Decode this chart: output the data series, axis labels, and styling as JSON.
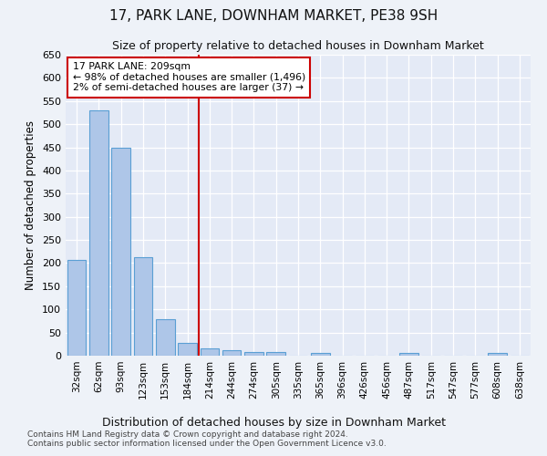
{
  "title": "17, PARK LANE, DOWNHAM MARKET, PE38 9SH",
  "subtitle": "Size of property relative to detached houses in Downham Market",
  "xlabel": "Distribution of detached houses by size in Downham Market",
  "ylabel": "Number of detached properties",
  "bar_labels": [
    "32sqm",
    "62sqm",
    "93sqm",
    "123sqm",
    "153sqm",
    "184sqm",
    "214sqm",
    "244sqm",
    "274sqm",
    "305sqm",
    "335sqm",
    "365sqm",
    "396sqm",
    "426sqm",
    "456sqm",
    "487sqm",
    "517sqm",
    "547sqm",
    "577sqm",
    "608sqm",
    "638sqm"
  ],
  "bar_values": [
    207,
    530,
    450,
    212,
    78,
    27,
    15,
    12,
    7,
    8,
    0,
    6,
    0,
    0,
    0,
    6,
    0,
    0,
    0,
    6,
    0
  ],
  "bar_color": "#aec6e8",
  "bar_edge_color": "#5a9fd4",
  "vline_x_index": 6,
  "vline_color": "#cc0000",
  "annotation_line1": "17 PARK LANE: 209sqm",
  "annotation_line2": "← 98% of detached houses are smaller (1,496)",
  "annotation_line3": "2% of semi-detached houses are larger (37) →",
  "ylim": [
    0,
    650
  ],
  "yticks": [
    0,
    50,
    100,
    150,
    200,
    250,
    300,
    350,
    400,
    450,
    500,
    550,
    600,
    650
  ],
  "footnote1": "Contains HM Land Registry data © Crown copyright and database right 2024.",
  "footnote2": "Contains public sector information licensed under the Open Government Licence v3.0.",
  "background_color": "#eef2f8",
  "plot_bg_color": "#e4eaf6"
}
